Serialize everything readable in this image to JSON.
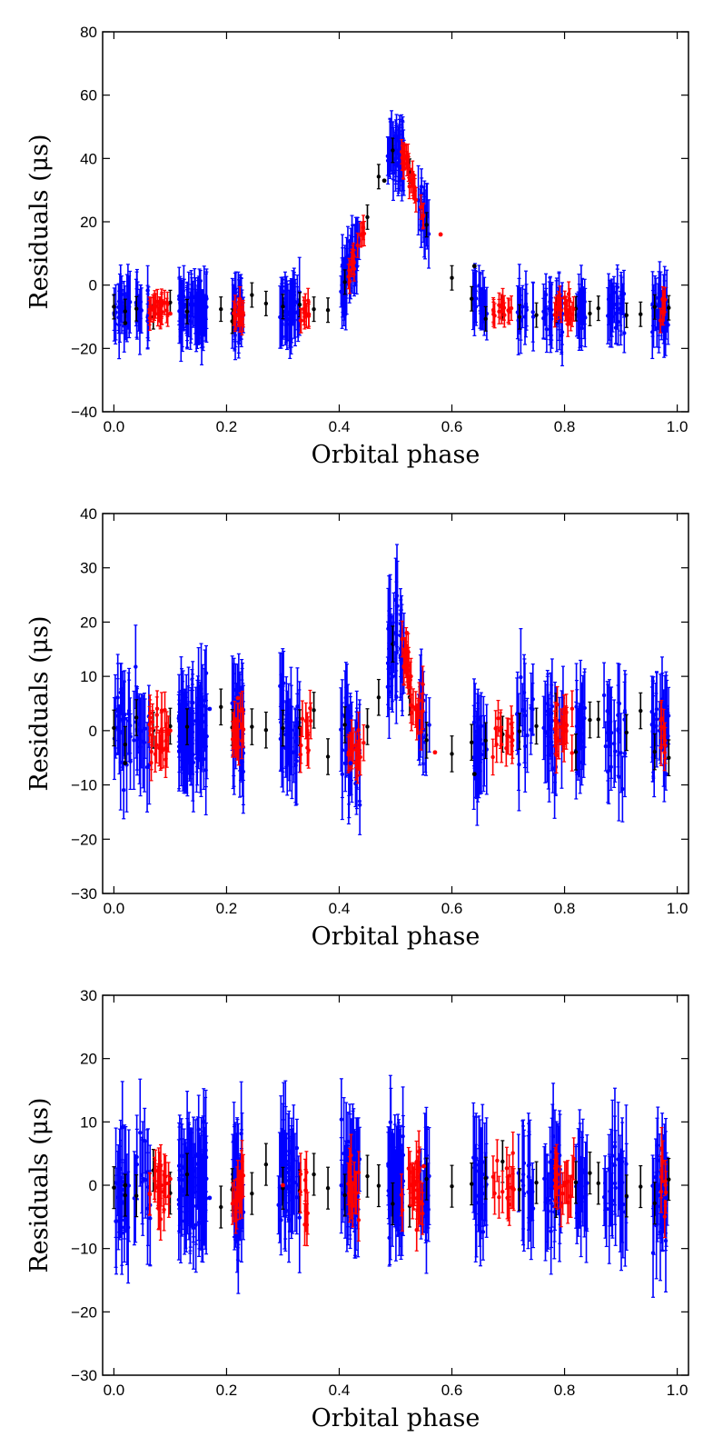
{
  "chart_data": [
    {
      "type": "scatter",
      "title": "",
      "xlabel": "Orbital phase",
      "ylabel": "Residuals (μs)",
      "xlim": [
        -0.02,
        1.02
      ],
      "ylim": [
        -40,
        80
      ],
      "xticks": [
        "0.0",
        "0.2",
        "0.4",
        "0.6",
        "0.8",
        "1.0"
      ],
      "yticks": [
        "−40",
        "−20",
        "0",
        "20",
        "40",
        "60",
        "80"
      ],
      "grid": false,
      "series_colors": {
        "black": "#000000",
        "red": "#ff0000",
        "blue": "#0000ff"
      },
      "signal": {
        "shape": "peak",
        "baseline": -8,
        "peak": 42,
        "center": 0.5,
        "width": 0.07
      },
      "sample_points": [
        {
          "x": 0.02,
          "y": -12,
          "color": "black"
        },
        {
          "x": 0.1,
          "y": -9,
          "color": "red"
        },
        {
          "x": 0.16,
          "y": -9,
          "color": "blue"
        },
        {
          "x": 0.3,
          "y": -2,
          "color": "blue"
        },
        {
          "x": 0.42,
          "y": 14,
          "color": "blue"
        },
        {
          "x": 0.48,
          "y": 33,
          "color": "black"
        },
        {
          "x": 0.5,
          "y": 47,
          "color": "blue"
        },
        {
          "x": 0.52,
          "y": 40,
          "color": "red"
        },
        {
          "x": 0.58,
          "y": 16,
          "color": "red"
        },
        {
          "x": 0.64,
          "y": 6,
          "color": "black"
        },
        {
          "x": 0.8,
          "y": -4,
          "color": "red"
        },
        {
          "x": 0.98,
          "y": -12,
          "color": "blue"
        }
      ]
    },
    {
      "type": "scatter",
      "title": "",
      "xlabel": "Orbital phase",
      "ylabel": "Residuals (μs)",
      "xlim": [
        -0.02,
        1.02
      ],
      "ylim": [
        -30,
        40
      ],
      "xticks": [
        "0.0",
        "0.2",
        "0.4",
        "0.6",
        "0.8",
        "1.0"
      ],
      "yticks": [
        "−30",
        "−20",
        "−10",
        "0",
        "10",
        "20",
        "30",
        "40"
      ],
      "grid": false,
      "series_colors": {
        "black": "#000000",
        "red": "#ff0000",
        "blue": "#0000ff"
      },
      "signal": {
        "shape": "peak+dips",
        "baseline": 0,
        "peak": 16,
        "center": 0.5,
        "width": 0.03
      },
      "sample_points": [
        {
          "x": 0.02,
          "y": -6,
          "color": "black"
        },
        {
          "x": 0.1,
          "y": 0,
          "color": "red"
        },
        {
          "x": 0.17,
          "y": 4,
          "color": "blue"
        },
        {
          "x": 0.22,
          "y": 6,
          "color": "red"
        },
        {
          "x": 0.42,
          "y": -6,
          "color": "blue"
        },
        {
          "x": 0.5,
          "y": 16,
          "color": "blue"
        },
        {
          "x": 0.52,
          "y": 18,
          "color": "red"
        },
        {
          "x": 0.57,
          "y": -4,
          "color": "red"
        },
        {
          "x": 0.64,
          "y": -8,
          "color": "black"
        },
        {
          "x": 0.8,
          "y": 4,
          "color": "red"
        },
        {
          "x": 0.98,
          "y": -8,
          "color": "blue"
        }
      ]
    },
    {
      "type": "scatter",
      "title": "",
      "xlabel": "Orbital phase",
      "ylabel": "Residuals (μs)",
      "xlim": [
        -0.02,
        1.02
      ],
      "ylim": [
        -30,
        30
      ],
      "xticks": [
        "0.0",
        "0.2",
        "0.4",
        "0.6",
        "0.8",
        "1.0"
      ],
      "yticks": [
        "−30",
        "−20",
        "−10",
        "0",
        "10",
        "20",
        "30"
      ],
      "grid": false,
      "series_colors": {
        "black": "#000000",
        "red": "#ff0000",
        "blue": "#0000ff"
      },
      "signal": {
        "shape": "flat",
        "baseline": 0,
        "peak": 0,
        "center": 0.5,
        "width": 0.05
      },
      "sample_points": [
        {
          "x": 0.02,
          "y": 0,
          "color": "black"
        },
        {
          "x": 0.1,
          "y": 1,
          "color": "red"
        },
        {
          "x": 0.17,
          "y": -2,
          "color": "blue"
        },
        {
          "x": 0.3,
          "y": 0,
          "color": "red"
        },
        {
          "x": 0.5,
          "y": 1,
          "color": "blue"
        },
        {
          "x": 0.55,
          "y": 3,
          "color": "red"
        },
        {
          "x": 0.8,
          "y": 0,
          "color": "red"
        },
        {
          "x": 0.98,
          "y": -2,
          "color": "blue"
        }
      ]
    }
  ]
}
